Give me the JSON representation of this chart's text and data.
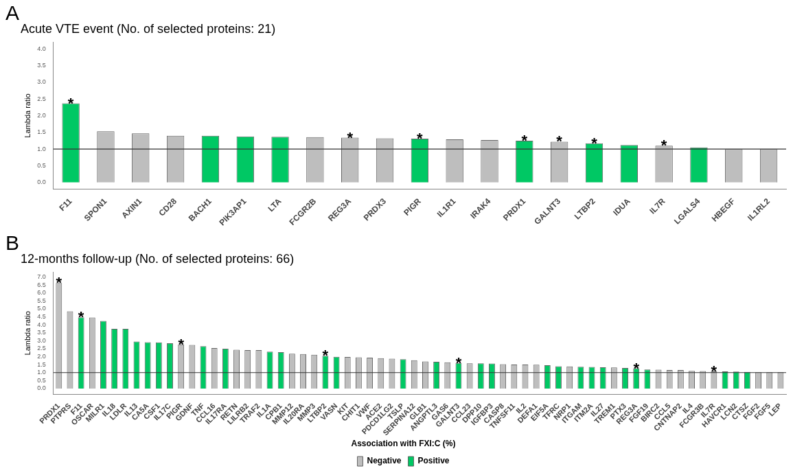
{
  "chart_data": [
    {
      "type": "bar",
      "title": "Acute VTE event (No. of selected proteins: 21)",
      "ylabel": "Lambda ratio",
      "categories": [
        "F11",
        "SPON1",
        "AXIN1",
        "CD28",
        "BACH1",
        "PIK3AP1",
        "LTA",
        "FCGR2B",
        "REG3A",
        "PRDX3",
        "PIGR",
        "IL1R1",
        "IRAK4",
        "PRDX1",
        "GALNT3",
        "LTBP2",
        "IDUA",
        "IL7R",
        "LGALS4",
        "HBEGF",
        "IL1RL2"
      ],
      "series": [
        {
          "color": "#bebebe",
          "values": [
            null,
            1.53,
            1.47,
            1.4,
            null,
            null,
            null,
            1.36,
            1.34,
            1.32,
            null,
            1.29,
            1.27,
            null,
            1.22,
            null,
            null,
            1.1,
            null,
            1.0,
            1.0
          ]
        },
        {
          "color": "#00c864",
          "values": [
            2.37,
            null,
            null,
            null,
            1.4,
            1.38,
            1.37,
            null,
            null,
            null,
            1.31,
            null,
            null,
            1.25,
            null,
            1.17,
            1.12,
            null,
            1.05,
            null,
            null
          ]
        }
      ],
      "ylim": [
        -0.2,
        4.2
      ],
      "yticks": [
        {
          "value": 0,
          "label": "0.0"
        },
        {
          "value": 0.5,
          "label": "0.5"
        },
        {
          "value": 1,
          "label": "1.0"
        },
        {
          "value": 1.5,
          "label": "1.5"
        },
        {
          "value": 2,
          "label": "2.0"
        },
        {
          "value": 2.5,
          "label": "2.5"
        },
        {
          "value": 3,
          "label": "3.0"
        },
        {
          "value": 3.5,
          "label": "3.5"
        },
        {
          "value": 4,
          "label": "4.0"
        }
      ],
      "ref_lines": [
        {
          "axis": "y",
          "value": 1.0,
          "color": "#333333"
        }
      ],
      "annotations": [
        "A",
        {
          "text": "*",
          "x": "F11",
          "y": 2.37
        },
        {
          "text": "*",
          "x": "REG3A",
          "y": 1.34
        },
        {
          "text": "*",
          "x": "PIGR",
          "y": 1.31
        },
        {
          "text": "*",
          "x": "PRDX1",
          "y": 1.25
        },
        {
          "text": "*",
          "x": "GALNT3",
          "y": 1.22
        },
        {
          "text": "*",
          "x": "LTBP2",
          "y": 1.17
        },
        {
          "text": "*",
          "x": "IL7R",
          "y": 1.1
        }
      ],
      "grid": false,
      "legend": false
    },
    {
      "type": "bar",
      "title": "12-months follow-up (No. of selected proteins: 66)",
      "ylabel": "Lambda ratio",
      "legend_title": "Association with FXI:C (%)",
      "categories": [
        "PRDX1",
        "PTPRS",
        "F11",
        "OSCAR",
        "MILR1",
        "IL18",
        "LDLR",
        "IL13",
        "CA5A",
        "CSF1",
        "IL17C",
        "PIGR",
        "GDNF",
        "TNF",
        "CCL16",
        "IL17RA",
        "RETN",
        "LILRB2",
        "TRAF2",
        "IL1A",
        "CPB1",
        "MMP12",
        "IL20RA",
        "MMP3",
        "LTBP2",
        "VASN",
        "KIT",
        "CHIT1",
        "VWF",
        "ACE2",
        "PDCD1LG2",
        "TSLP",
        "SERPINA12",
        "GLB1",
        "ANGPTL3",
        "GAS6",
        "GALNT3",
        "CCL23",
        "DPP10",
        "IGFBP3",
        "CASP8",
        "TNFSF11",
        "IL2",
        "DEFA1",
        "EIF5A",
        "TFRC",
        "NRP1",
        "ITGAM",
        "ITM2A",
        "IL27",
        "TREM1",
        "PTX3",
        "REG3A",
        "FGF19",
        "BIRC2",
        "CCL5",
        "CNTNAP2",
        "IL4",
        "FCGR3B",
        "IL7R",
        "HAVCR1",
        "LCN2",
        "CTSZ",
        "FGF2",
        "FGF5",
        "LEP"
      ],
      "series": [
        {
          "name": "Negative",
          "color": "#bebebe",
          "values": [
            6.63,
            4.85,
            null,
            4.46,
            null,
            null,
            null,
            null,
            null,
            null,
            null,
            2.77,
            2.73,
            null,
            2.54,
            null,
            2.43,
            2.41,
            2.41,
            null,
            null,
            2.18,
            2.16,
            2.12,
            null,
            null,
            1.98,
            1.96,
            1.94,
            1.9,
            1.87,
            null,
            1.77,
            1.7,
            null,
            1.65,
            null,
            1.58,
            null,
            null,
            1.53,
            1.51,
            1.51,
            1.5,
            null,
            null,
            1.39,
            null,
            null,
            null,
            1.32,
            null,
            null,
            null,
            1.18,
            1.16,
            1.16,
            1.11,
            1.1,
            1.07,
            null,
            null,
            null,
            1.02,
            1.02,
            1.02
          ]
        },
        {
          "name": "Positive",
          "color": "#00c864",
          "values": [
            null,
            null,
            4.47,
            null,
            4.24,
            3.75,
            3.75,
            2.95,
            2.91,
            2.9,
            2.84,
            null,
            null,
            2.66,
            null,
            2.5,
            null,
            null,
            null,
            2.31,
            2.28,
            null,
            null,
            null,
            2.05,
            1.99,
            null,
            null,
            null,
            null,
            null,
            1.84,
            null,
            null,
            1.68,
            null,
            1.6,
            null,
            1.58,
            1.57,
            null,
            null,
            null,
            null,
            1.46,
            1.4,
            null,
            1.37,
            1.35,
            1.33,
            null,
            1.29,
            1.27,
            1.19,
            null,
            null,
            null,
            null,
            null,
            null,
            1.07,
            1.06,
            1.04,
            null,
            null,
            null
          ]
        }
      ],
      "ylim": [
        -0.35,
        7.3
      ],
      "yticks": [
        {
          "value": 0,
          "label": "0.0"
        },
        {
          "value": 0.5,
          "label": "0.5"
        },
        {
          "value": 1,
          "label": "1.0"
        },
        {
          "value": 1.5,
          "label": "1.5"
        },
        {
          "value": 2,
          "label": "2.0"
        },
        {
          "value": 2.5,
          "label": "2.5"
        },
        {
          "value": 3,
          "label": "3.0"
        },
        {
          "value": 3.5,
          "label": "3.5"
        },
        {
          "value": 4,
          "label": "4.0"
        },
        {
          "value": 4.5,
          "label": "4.5"
        },
        {
          "value": 5,
          "label": "5.0"
        },
        {
          "value": 5.5,
          "label": "5.5"
        },
        {
          "value": 6,
          "label": "6.0"
        },
        {
          "value": 6.5,
          "label": "6.5"
        },
        {
          "value": 7,
          "label": "7.0"
        }
      ],
      "ref_lines": [
        {
          "axis": "y",
          "value": 1.0,
          "color": "#333333"
        }
      ],
      "annotations": [
        "B",
        {
          "text": "*",
          "x": "PRDX1",
          "y": 6.63
        },
        {
          "text": "*",
          "x": "F11",
          "y": 4.47
        },
        {
          "text": "*",
          "x": "PIGR",
          "y": 2.77
        },
        {
          "text": "*",
          "x": "LTBP2",
          "y": 2.05
        },
        {
          "text": "*",
          "x": "GALNT3",
          "y": 1.6
        },
        {
          "text": "*",
          "x": "REG3A",
          "y": 1.27
        },
        {
          "text": "*",
          "x": "IL7R",
          "y": 1.07
        }
      ],
      "grid": false,
      "legend": "bottom"
    }
  ]
}
